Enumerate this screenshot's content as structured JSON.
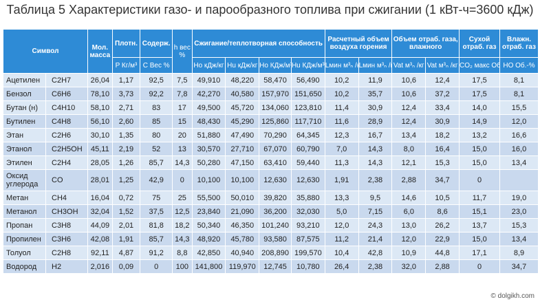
{
  "title": "Таблица 5 Характеристики газо- и парообразного топлива при сжигании (1 кВт-ч=3600 кДж)",
  "header": {
    "symbol": "Символ",
    "mol_mass": "Мол. масса",
    "density": "Плотн.",
    "content": "Содерж.",
    "h_wt": "h вес",
    "h_wt_unit": "%",
    "combustion": "Сжигание/теплотворная способность",
    "air": "Расчетный объем воздуха горения",
    "wet_gas": "Объем отраб. газа, влажного",
    "dry_gas": "Сухой отраб. газ",
    "wet_flue": "Влажн. отраб. газ",
    "density_unit": "P Кг/м³",
    "content_unit_1": "C Вес",
    "content_unit_2": "%",
    "ho_kj_kg": "Ho кДж/кг",
    "hu_kj_kg": "Hu кДж/кг",
    "ho_kj_m3": "Ho КДж/м³ₙ",
    "hu_kj_m3": "Hu КДж/м³ₙ",
    "lmin_kg": "Lмин м³ₙ /кг",
    "lmin_m3": "Lмин м³ₙ /кг",
    "vat_kg": "Vat м³ₙ /кг",
    "vat_m3": "Vat м³ₙ /кг",
    "co2_max": "CO₂ макс Об.-%",
    "h2o": "HO Об.-%"
  },
  "rows": [
    [
      "Ацетилен",
      "C2H7",
      "26,04",
      "1,17",
      "92,5",
      "7,5",
      "49,910",
      "48,220",
      "58,470",
      "56,490",
      "10,2",
      "11,9",
      "10,6",
      "12,4",
      "17,5",
      "8,1"
    ],
    [
      "Бензол",
      "C6H6",
      "78,10",
      "3,73",
      "92,2",
      "7,8",
      "42,270",
      "40,580",
      "157,970",
      "151,650",
      "10,2",
      "35,7",
      "10,6",
      "37,2",
      "17,5",
      "8,1"
    ],
    [
      "Бутан (н)",
      "C4H10",
      "58,10",
      "2,71",
      "83",
      "17",
      "49,500",
      "45,720",
      "134,060",
      "123,810",
      "11,4",
      "30,9",
      "12,4",
      "33,4",
      "14,0",
      "15,5"
    ],
    [
      "Бутилен",
      "C4H8",
      "56,10",
      "2,60",
      "85",
      "15",
      "48,430",
      "45,290",
      "125,860",
      "117,710",
      "11,6",
      "28,9",
      "12,4",
      "30,9",
      "14,9",
      "12,0"
    ],
    [
      "Этан",
      "C2H6",
      "30,10",
      "1,35",
      "80",
      "20",
      "51,880",
      "47,490",
      "70,290",
      "64,345",
      "12,3",
      "16,7",
      "13,4",
      "18,2",
      "13,2",
      "16,6"
    ],
    [
      "Этанол",
      "C2H5OH",
      "45,11",
      "2,19",
      "52",
      "13",
      "30,570",
      "27,710",
      "67,070",
      "60,790",
      "7,0",
      "14,3",
      "8,0",
      "16,4",
      "15,0",
      "16,0"
    ],
    [
      "Этилен",
      "C2H4",
      "28,05",
      "1,26",
      "85,7",
      "14,3",
      "50,280",
      "47,150",
      "63,410",
      "59,440",
      "11,3",
      "14,3",
      "12,1",
      "15,3",
      "15,0",
      "13,4"
    ],
    [
      "Оксид углерода",
      "CO",
      "28,01",
      "1,25",
      "42,9",
      "0",
      "10,100",
      "10,100",
      "12,630",
      "12,630",
      "1,91",
      "2,38",
      "2,88",
      "34,7",
      "0",
      ""
    ],
    [
      "Метан",
      "CH4",
      "16,04",
      "0,72",
      "75",
      "25",
      "55,500",
      "50,010",
      "39,820",
      "35,880",
      "13,3",
      "9,5",
      "14,6",
      "10,5",
      "11,7",
      "19,0"
    ],
    [
      "Метанол",
      "CH3OH",
      "32,04",
      "1,52",
      "37,5",
      "12,5",
      "23,840",
      "21,090",
      "36,200",
      "32,030",
      "5,0",
      "7,15",
      "6,0",
      "8,6",
      "15,1",
      "23,0"
    ],
    [
      "Пропан",
      "C3H8",
      "44,09",
      "2,01",
      "81,8",
      "18,2",
      "50,340",
      "46,350",
      "101,240",
      "93,210",
      "12,0",
      "24,3",
      "13,0",
      "26,2",
      "13,7",
      "15,3"
    ],
    [
      "Пропилен",
      "C3H6",
      "42,08",
      "1,91",
      "85,7",
      "14,3",
      "48,920",
      "45,780",
      "93,580",
      "87,575",
      "11,2",
      "21,4",
      "12,0",
      "22,9",
      "15,0",
      "13,4"
    ],
    [
      "Толуол",
      "C2H8",
      "92,11",
      "4,87",
      "91,2",
      "8,8",
      "42,850",
      "40,940",
      "208,890",
      "199,570",
      "10,4",
      "42,8",
      "10,9",
      "44,8",
      "17,1",
      "8,9"
    ],
    [
      "Водород",
      "H2",
      "2,016",
      "0,09",
      "0",
      "100",
      "141,800",
      "119,970",
      "12,745",
      "10,780",
      "26,4",
      "2,38",
      "32,0",
      "2,88",
      "0",
      "34,7"
    ]
  ],
  "watermark": "© dolgikh.com"
}
